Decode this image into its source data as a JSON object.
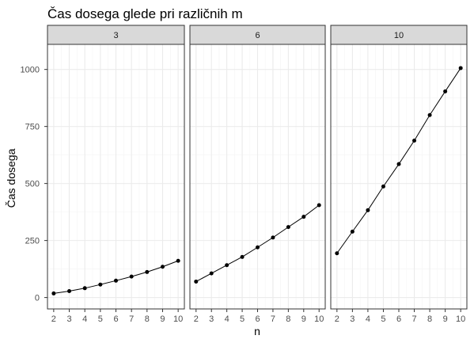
{
  "chart_data": {
    "type": "line",
    "title": "Čas dosega glede pri različnih m",
    "xlabel": "n",
    "ylabel": "Čas dosega",
    "x": [
      2,
      3,
      4,
      5,
      6,
      7,
      8,
      9,
      10
    ],
    "x_ticks": [
      2,
      3,
      4,
      5,
      6,
      7,
      8,
      9,
      10
    ],
    "xlim": [
      1.6,
      10.4
    ],
    "y_ticks": [
      0,
      250,
      500,
      750,
      1000
    ],
    "ylim": [
      -50,
      1110
    ],
    "grid": true,
    "markers": true,
    "facets": [
      {
        "label": "3",
        "values": [
          18,
          28,
          41,
          57,
          74,
          92,
          112,
          135,
          161
        ]
      },
      {
        "label": "6",
        "values": [
          70,
          106,
          142,
          178,
          220,
          263,
          309,
          354,
          405
        ]
      },
      {
        "label": "10",
        "values": [
          194,
          289,
          383,
          487,
          585,
          688,
          800,
          904,
          1006
        ]
      }
    ],
    "colors": {
      "line": "#000000",
      "point": "#000000",
      "panel_border": "#333333",
      "strip_fill": "#d9d9d9",
      "grid_major": "#ebebeb",
      "grid_minor": "#f4f4f4"
    }
  }
}
